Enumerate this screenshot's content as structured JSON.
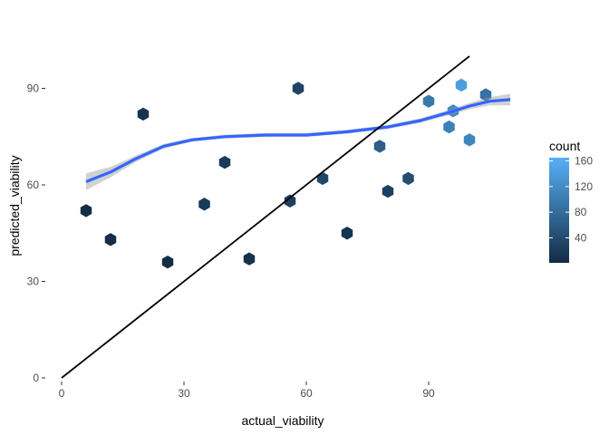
{
  "chart_data": {
    "type": "hexbin",
    "title": "",
    "xlabel": "actual_viability",
    "ylabel": "predicted_viability",
    "xlim": [
      0,
      111
    ],
    "ylim": [
      0,
      100
    ],
    "x_ticks": [
      0,
      30,
      60,
      90
    ],
    "y_ticks": [
      0,
      30,
      60,
      90
    ],
    "x_tick_labels": [
      "0",
      "30",
      "60",
      "90"
    ],
    "y_tick_labels": [
      "0",
      "30",
      "60",
      "90"
    ],
    "grid": false,
    "legend": {
      "title": "count",
      "position": "right",
      "breaks": [
        40,
        80,
        120,
        160
      ],
      "labels": [
        "40",
        "80",
        "120",
        "160"
      ],
      "range": [
        1,
        165
      ],
      "low_color": "#132B43",
      "high_color": "#56B1F7"
    },
    "identity_line": {
      "x": [
        0,
        100
      ],
      "y": [
        0,
        100
      ],
      "color": "#000000"
    },
    "smooth_line": {
      "color": "#3366FF",
      "band_color": "#999999",
      "x": [
        6,
        12,
        18,
        25,
        32,
        40,
        50,
        60,
        70,
        80,
        88,
        95,
        100,
        105,
        110
      ],
      "y": [
        61,
        64,
        68,
        72,
        74,
        75,
        75.5,
        75.5,
        76.5,
        78,
        80,
        82.5,
        84.5,
        86,
        86.5
      ],
      "se": [
        2.6,
        1.6,
        1.0,
        0.7,
        0.6,
        0.6,
        0.6,
        0.6,
        0.6,
        0.6,
        0.7,
        0.8,
        1.0,
        1.3,
        1.8
      ]
    },
    "hex_counts": [
      {
        "x": 12,
        "y": 43,
        "count": 6
      },
      {
        "x": 26,
        "y": 36,
        "count": 3
      },
      {
        "x": 46,
        "y": 37,
        "count": 9
      },
      {
        "x": 95,
        "y": 78,
        "count": 105
      },
      {
        "x": 56,
        "y": 55,
        "count": 26
      },
      {
        "x": 78,
        "y": 72,
        "count": 64
      },
      {
        "x": 35,
        "y": 54,
        "count": 18
      },
      {
        "x": 98,
        "y": 91,
        "count": 140
      },
      {
        "x": 64,
        "y": 62,
        "count": 35
      },
      {
        "x": 90,
        "y": 86,
        "count": 95
      },
      {
        "x": 80,
        "y": 58,
        "count": 27
      },
      {
        "x": 100,
        "y": 74,
        "count": 112
      },
      {
        "x": 20,
        "y": 82,
        "count": 11
      },
      {
        "x": 40,
        "y": 67,
        "count": 20
      },
      {
        "x": 70,
        "y": 45,
        "count": 12
      },
      {
        "x": 104,
        "y": 88,
        "count": 88
      },
      {
        "x": 58,
        "y": 90,
        "count": 30
      },
      {
        "x": 85,
        "y": 62,
        "count": 42
      },
      {
        "x": 6,
        "y": 52,
        "count": 5
      },
      {
        "x": 96,
        "y": 83,
        "count": 120
      }
    ]
  }
}
